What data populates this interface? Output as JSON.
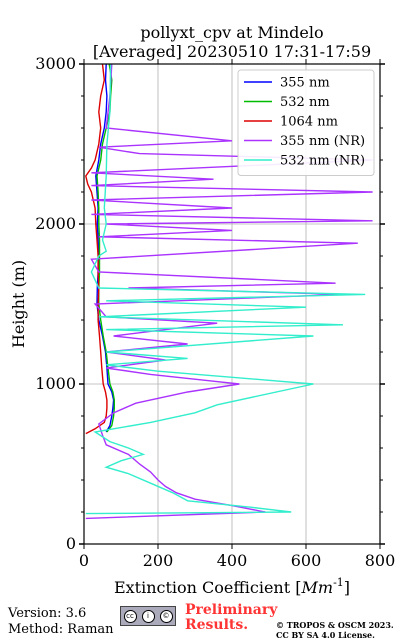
{
  "chart_data": {
    "type": "line",
    "title_line1": "pollyxt_cpv at Mindelo",
    "title_line2": "[Averaged] 20230510 17:31-17:59",
    "xlabel": "Extinction Coefficient [",
    "xlabel_unit": "Mm",
    "xlabel_exp": "-1",
    "xlabel_close": "]",
    "ylabel": "Height (m)",
    "xlim": [
      0,
      800
    ],
    "ylim": [
      0,
      3000
    ],
    "x_ticks": [
      0,
      200,
      400,
      600,
      800
    ],
    "x_tick_labels": [
      "0",
      "200",
      "400",
      "600",
      "800"
    ],
    "y_ticks": [
      0,
      1000,
      2000,
      3000
    ],
    "y_tick_labels": [
      "0",
      "1000",
      "2000",
      "3000"
    ],
    "grid": true,
    "legend_position": "top-right",
    "series": [
      {
        "name": "355 nm",
        "color": "#0000ff",
        "points": [
          [
            60,
            700
          ],
          [
            70,
            740
          ],
          [
            75,
            800
          ],
          [
            78,
            850
          ],
          [
            80,
            900
          ],
          [
            75,
            950
          ],
          [
            65,
            1000
          ],
          [
            62,
            1100
          ],
          [
            58,
            1200
          ],
          [
            50,
            1300
          ],
          [
            40,
            1400
          ],
          [
            35,
            1500
          ],
          [
            36,
            1600
          ],
          [
            38,
            1700
          ],
          [
            40,
            1800
          ],
          [
            38,
            1900
          ],
          [
            36,
            2000
          ],
          [
            38,
            2100
          ],
          [
            35,
            2200
          ],
          [
            32,
            2300
          ],
          [
            40,
            2400
          ],
          [
            45,
            2500
          ],
          [
            55,
            2600
          ],
          [
            60,
            2700
          ],
          [
            62,
            2800
          ],
          [
            58,
            2900
          ],
          [
            60,
            3000
          ]
        ]
      },
      {
        "name": "532 nm",
        "color": "#00bb00",
        "points": [
          [
            62,
            700
          ],
          [
            75,
            740
          ],
          [
            80,
            800
          ],
          [
            82,
            850
          ],
          [
            82,
            900
          ],
          [
            78,
            950
          ],
          [
            70,
            1000
          ],
          [
            65,
            1100
          ],
          [
            60,
            1200
          ],
          [
            52,
            1300
          ],
          [
            45,
            1400
          ],
          [
            40,
            1500
          ],
          [
            40,
            1600
          ],
          [
            42,
            1700
          ],
          [
            42,
            1800
          ],
          [
            42,
            1900
          ],
          [
            40,
            2000
          ],
          [
            40,
            2100
          ],
          [
            38,
            2200
          ],
          [
            35,
            2300
          ],
          [
            45,
            2400
          ],
          [
            50,
            2500
          ],
          [
            60,
            2600
          ],
          [
            70,
            2700
          ],
          [
            72,
            2800
          ],
          [
            75,
            2900
          ],
          [
            68,
            3000
          ]
        ]
      },
      {
        "name": "1064 nm",
        "color": "#dd0000",
        "points": [
          [
            5,
            690
          ],
          [
            30,
            720
          ],
          [
            55,
            760
          ],
          [
            60,
            800
          ],
          [
            62,
            850
          ],
          [
            62,
            900
          ],
          [
            58,
            950
          ],
          [
            52,
            1000
          ],
          [
            48,
            1100
          ],
          [
            45,
            1200
          ],
          [
            42,
            1300
          ],
          [
            38,
            1400
          ],
          [
            38,
            1500
          ],
          [
            40,
            1600
          ],
          [
            38,
            1700
          ],
          [
            38,
            1800
          ],
          [
            35,
            1900
          ],
          [
            32,
            2000
          ],
          [
            30,
            2100
          ],
          [
            20,
            2200
          ],
          [
            10,
            2250
          ],
          [
            5,
            2300
          ],
          [
            20,
            2350
          ],
          [
            30,
            2400
          ],
          [
            40,
            2500
          ],
          [
            45,
            2600
          ],
          [
            40,
            2700
          ],
          [
            45,
            2800
          ],
          [
            55,
            2900
          ],
          [
            50,
            3000
          ]
        ]
      },
      {
        "name": "355 nm (NR)",
        "color": "#aa33ff",
        "points": [
          [
            5,
            160
          ],
          [
            490,
            200
          ],
          [
            400,
            240
          ],
          [
            300,
            280
          ],
          [
            250,
            320
          ],
          [
            220,
            360
          ],
          [
            200,
            400
          ],
          [
            180,
            450
          ],
          [
            150,
            500
          ],
          [
            120,
            560
          ],
          [
            60,
            620
          ],
          [
            50,
            680
          ],
          [
            40,
            750
          ],
          [
            80,
            820
          ],
          [
            140,
            880
          ],
          [
            280,
            950
          ],
          [
            420,
            1000
          ],
          [
            180,
            1060
          ],
          [
            60,
            1100
          ],
          [
            220,
            1150
          ],
          [
            60,
            1200
          ],
          [
            280,
            1250
          ],
          [
            80,
            1300
          ],
          [
            360,
            1380
          ],
          [
            60,
            1420
          ],
          [
            30,
            1500
          ],
          [
            700,
            1560
          ],
          [
            120,
            1600
          ],
          [
            680,
            1630
          ],
          [
            40,
            1700
          ],
          [
            20,
            1780
          ],
          [
            740,
            1880
          ],
          [
            40,
            1920
          ],
          [
            400,
            1960
          ],
          [
            60,
            2000
          ],
          [
            780,
            2020
          ],
          [
            20,
            2060
          ],
          [
            400,
            2100
          ],
          [
            20,
            2150
          ],
          [
            780,
            2200
          ],
          [
            20,
            2240
          ],
          [
            350,
            2280
          ],
          [
            20,
            2320
          ],
          [
            780,
            2400
          ],
          [
            150,
            2440
          ],
          [
            40,
            2480
          ],
          [
            400,
            2520
          ],
          [
            60,
            2600
          ],
          [
            70,
            2800
          ],
          [
            75,
            3000
          ]
        ]
      },
      {
        "name": "532 nm (NR)",
        "color": "#33eecc",
        "points": [
          [
            5,
            190
          ],
          [
            560,
            200
          ],
          [
            450,
            230
          ],
          [
            280,
            270
          ],
          [
            240,
            320
          ],
          [
            180,
            380
          ],
          [
            120,
            440
          ],
          [
            60,
            480
          ],
          [
            100,
            520
          ],
          [
            160,
            560
          ],
          [
            120,
            600
          ],
          [
            70,
            640
          ],
          [
            30,
            700
          ],
          [
            180,
            760
          ],
          [
            300,
            820
          ],
          [
            360,
            870
          ],
          [
            620,
            1000
          ],
          [
            200,
            1080
          ],
          [
            60,
            1120
          ],
          [
            280,
            1160
          ],
          [
            60,
            1200
          ],
          [
            620,
            1300
          ],
          [
            60,
            1340
          ],
          [
            700,
            1370
          ],
          [
            40,
            1420
          ],
          [
            600,
            1480
          ],
          [
            60,
            1520
          ],
          [
            760,
            1560
          ],
          [
            40,
            1600
          ],
          [
            20,
            1700
          ],
          [
            40,
            1800
          ],
          [
            60,
            1830
          ],
          [
            50,
            1900
          ],
          [
            60,
            2000
          ],
          [
            55,
            2100
          ],
          [
            60,
            2300
          ],
          [
            62,
            2500
          ],
          [
            70,
            2700
          ],
          [
            72,
            3000
          ]
        ]
      }
    ]
  },
  "footer": {
    "version": "Version: 3.6",
    "method": "Method: Raman",
    "preliminary_line1": "Preliminary",
    "preliminary_line2": "Results.",
    "copyright_line1": "© TROPOS & OSCM 2023.",
    "copyright_line2": "CC BY SA 4.0 License.",
    "license_icon": "cc-by-sa-badge-icon"
  }
}
